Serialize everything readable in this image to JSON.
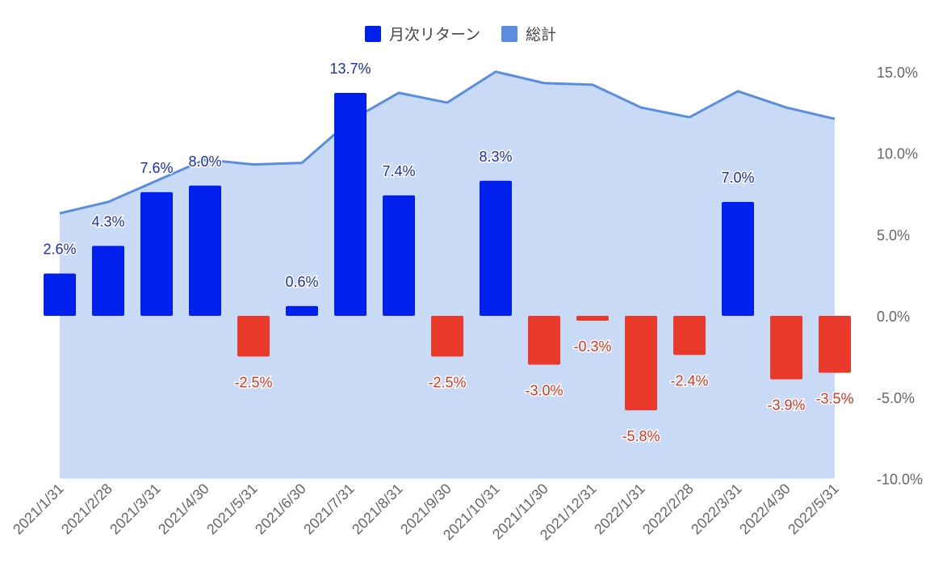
{
  "chart_data": {
    "type": "bar",
    "title": "",
    "legend_position": "top",
    "categories": [
      "2021/1/31",
      "2021/2/28",
      "2021/3/31",
      "2021/4/30",
      "2021/5/31",
      "2021/6/30",
      "2021/7/31",
      "2021/8/31",
      "2021/9/30",
      "2021/10/31",
      "2021/11/30",
      "2021/12/31",
      "2022/1/31",
      "2022/2/28",
      "2022/3/31",
      "2022/4/30",
      "2022/5/31"
    ],
    "series": [
      {
        "name": "月次リターン",
        "type": "bar",
        "values": [
          2.6,
          4.3,
          7.6,
          8.0,
          -2.5,
          0.6,
          13.7,
          7.4,
          -2.5,
          8.3,
          -3.0,
          -0.3,
          -5.8,
          -2.4,
          7.0,
          -3.9,
          -3.5
        ],
        "labels": [
          "2.6%",
          "4.3%",
          "7.6%",
          "8.0%",
          "-2.5%",
          "0.6%",
          "13.7%",
          "7.4%",
          "-2.5%",
          "8.3%",
          "-3.0%",
          "-0.3%",
          "-5.8%",
          "-2.4%",
          "7.0%",
          "-3.9%",
          "-3.5%"
        ]
      },
      {
        "name": "総計",
        "type": "area",
        "values": [
          6.3,
          7.0,
          8.3,
          9.6,
          9.3,
          9.4,
          12.0,
          13.7,
          13.1,
          15.0,
          14.3,
          14.2,
          12.8,
          12.2,
          13.8,
          12.8,
          12.1
        ]
      }
    ],
    "yaxis": {
      "position": "right",
      "ylim": [
        -10,
        15
      ],
      "ticks": [
        15,
        10,
        5,
        0,
        -5,
        -10
      ],
      "tick_labels": [
        "15.0%",
        "10.0%",
        "5.0%",
        "0.0%",
        "-5.0%",
        "-10.0%"
      ]
    },
    "grid": false,
    "colors": {
      "positive": "#0020ee",
      "negative": "#e8392a",
      "line": "#5a8de0",
      "area": "#c9daf6",
      "pos_label": "#1a2cc0",
      "neg_label": "#d8341f",
      "axis_text": "#666666"
    }
  }
}
